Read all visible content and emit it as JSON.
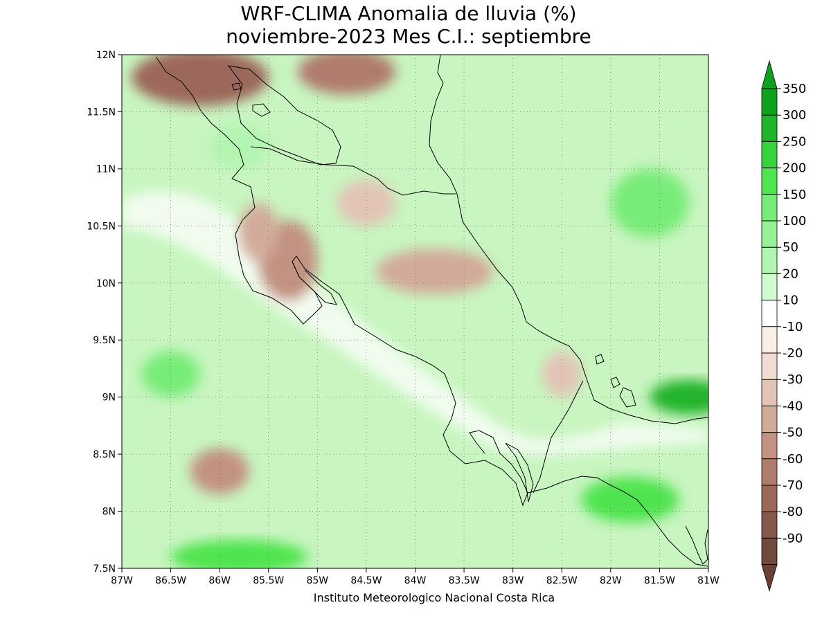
{
  "title": {
    "line1": "WRF-CLIMA Anomalia de lluvia (%)",
    "line2": "noviembre-2023 Mes C.I.: septiembre"
  },
  "credit": "Instituto Meteorologico Nacional Costa Rica",
  "map": {
    "lat_range": [
      7.5,
      12.0
    ],
    "lon_range": [
      -87.0,
      -81.0
    ],
    "lat_ticks": [
      {
        "value": 7.5,
        "label": "7.5N"
      },
      {
        "value": 8.0,
        "label": "8N"
      },
      {
        "value": 8.5,
        "label": "8.5N"
      },
      {
        "value": 9.0,
        "label": "9N"
      },
      {
        "value": 9.5,
        "label": "9.5N"
      },
      {
        "value": 10.0,
        "label": "10N"
      },
      {
        "value": 10.5,
        "label": "10.5N"
      },
      {
        "value": 11.0,
        "label": "11N"
      },
      {
        "value": 11.5,
        "label": "11.5N"
      },
      {
        "value": 12.0,
        "label": "12N"
      }
    ],
    "lon_ticks": [
      {
        "value": -87.0,
        "label": "87W"
      },
      {
        "value": -86.5,
        "label": "86.5W"
      },
      {
        "value": -86.0,
        "label": "86W"
      },
      {
        "value": -85.5,
        "label": "85.5W"
      },
      {
        "value": -85.0,
        "label": "85W"
      },
      {
        "value": -84.5,
        "label": "84.5W"
      },
      {
        "value": -84.0,
        "label": "84W"
      },
      {
        "value": -83.5,
        "label": "83.5W"
      },
      {
        "value": -83.0,
        "label": "83W"
      },
      {
        "value": -82.5,
        "label": "82.5W"
      },
      {
        "value": -82.0,
        "label": "82W"
      },
      {
        "value": -81.5,
        "label": "81.5W"
      },
      {
        "value": -81.0,
        "label": "81W"
      }
    ],
    "grid": true,
    "gridline_style": "dotted",
    "field_colors": {
      "land_dry": "#e8dcd3",
      "ocean": "#c8f5c0"
    }
  },
  "colorbar": {
    "orientation": "vertical",
    "placement": "right",
    "levels": [
      {
        "label": "350",
        "color": "#10a020"
      },
      {
        "label": "300",
        "color": "#20b42c"
      },
      {
        "label": "250",
        "color": "#38d23c"
      },
      {
        "label": "200",
        "color": "#50e450"
      },
      {
        "label": "150",
        "color": "#78ec78"
      },
      {
        "label": "100",
        "color": "#96f096"
      },
      {
        "label": "50",
        "color": "#b2f5b0"
      },
      {
        "label": "20",
        "color": "#d0fbd0"
      },
      {
        "label": "10",
        "color": "#ffffff"
      },
      {
        "label": "-10",
        "color": "#faefe6"
      },
      {
        "label": "-20",
        "color": "#f0dcd2"
      },
      {
        "label": "-30",
        "color": "#e2c4b6"
      },
      {
        "label": "-40",
        "color": "#d2aa9a"
      },
      {
        "label": "-50",
        "color": "#c29282"
      },
      {
        "label": "-60",
        "color": "#b07c6e"
      },
      {
        "label": "-70",
        "color": "#9c685c"
      },
      {
        "label": "-80",
        "color": "#86584c"
      },
      {
        "label": "-90",
        "color": "#70483c"
      }
    ],
    "top_arrow_color": "#10a020",
    "bottom_arrow_color": "#6a4034"
  },
  "chart_data": {
    "type": "heatmap",
    "title": "WRF-CLIMA Anomalia de lluvia (%) noviembre-2023 Mes C.I.: septiembre",
    "variable": "Anomalia de lluvia (%)",
    "x_range": [
      -87.0,
      -81.0
    ],
    "y_range": [
      7.5,
      12.0
    ],
    "contour_levels": [
      -90,
      -80,
      -70,
      -60,
      -50,
      -40,
      -30,
      -20,
      -10,
      10,
      20,
      50,
      100,
      150,
      200,
      250,
      300,
      350
    ],
    "regions": [
      {
        "lon": -86.2,
        "lat": 11.8,
        "rx": 0.7,
        "ry": 0.25,
        "value": -70
      },
      {
        "lon": -84.7,
        "lat": 11.85,
        "rx": 0.5,
        "ry": 0.2,
        "value": -60
      },
      {
        "lon": -85.3,
        "lat": 10.2,
        "rx": 0.3,
        "ry": 0.35,
        "value": -50
      },
      {
        "lon": -85.6,
        "lat": 10.45,
        "rx": 0.2,
        "ry": 0.25,
        "value": -40
      },
      {
        "lon": -83.8,
        "lat": 10.1,
        "rx": 0.6,
        "ry": 0.2,
        "value": -40
      },
      {
        "lon": -84.5,
        "lat": 10.7,
        "rx": 0.3,
        "ry": 0.2,
        "value": -30
      },
      {
        "lon": -82.5,
        "lat": 9.2,
        "rx": 0.2,
        "ry": 0.2,
        "value": -30
      },
      {
        "lon": -86.0,
        "lat": 8.35,
        "rx": 0.3,
        "ry": 0.2,
        "value": -50
      },
      {
        "lon": -85.8,
        "lat": 11.2,
        "rx": 0.3,
        "ry": 0.2,
        "value": 50
      },
      {
        "lon": -86.5,
        "lat": 9.2,
        "rx": 0.3,
        "ry": 0.2,
        "value": 150
      },
      {
        "lon": -81.6,
        "lat": 10.7,
        "rx": 0.4,
        "ry": 0.3,
        "value": 150
      },
      {
        "lon": -81.2,
        "lat": 9.0,
        "rx": 0.4,
        "ry": 0.15,
        "value": 300
      },
      {
        "lon": -81.8,
        "lat": 8.1,
        "rx": 0.5,
        "ry": 0.2,
        "value": 200
      },
      {
        "lon": -85.8,
        "lat": 7.6,
        "rx": 0.7,
        "ry": 0.15,
        "value": 200
      }
    ]
  }
}
